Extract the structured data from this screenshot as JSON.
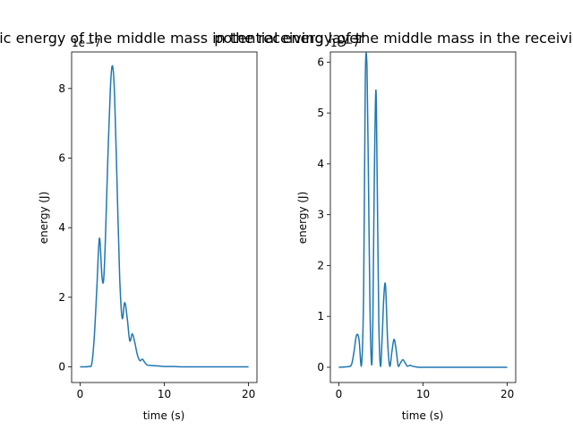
{
  "chart_data": [
    {
      "type": "line",
      "title": "kinetic energy of the middle mass in the receiving layer",
      "xlabel": "time (s)",
      "ylabel": "energy (J)",
      "offset_text": "1e−7",
      "xlim": [
        -1,
        21
      ],
      "ylim": [
        -0.45,
        9.05
      ],
      "xticks": [
        0,
        10,
        20
      ],
      "yticks": [
        0,
        2,
        4,
        6,
        8
      ],
      "line_color": "#1f77b4",
      "series": [
        {
          "x": [
            0,
            1,
            1.4,
            1.7,
            2.0,
            2.3,
            2.6,
            2.8,
            3.0,
            3.3,
            3.6,
            3.85,
            4.1,
            4.4,
            4.7,
            5.0,
            5.3,
            5.6,
            5.9,
            6.2,
            6.5,
            6.8,
            7.1,
            7.4,
            7.7,
            8.0,
            8.5,
            9.0,
            9.5,
            10,
            11,
            12,
            14,
            16,
            18,
            20
          ],
          "y": [
            0,
            0.01,
            0.1,
            0.9,
            2.3,
            3.7,
            2.6,
            2.5,
            3.6,
            6.0,
            8.0,
            8.65,
            7.8,
            5.2,
            2.6,
            1.4,
            1.85,
            1.4,
            0.75,
            0.95,
            0.7,
            0.35,
            0.18,
            0.22,
            0.12,
            0.05,
            0.04,
            0.03,
            0.02,
            0.01,
            0.01,
            0,
            0,
            0,
            0,
            0
          ]
        }
      ]
    },
    {
      "type": "line",
      "title": "potential energy of the middle mass in the receiving layer",
      "xlabel": "time (s)",
      "ylabel": "energy (J)",
      "offset_text": "1e−7",
      "xlim": [
        -1,
        21
      ],
      "ylim": [
        -0.3,
        6.2
      ],
      "xticks": [
        0,
        10,
        20
      ],
      "yticks": [
        0,
        1,
        2,
        3,
        4,
        5,
        6
      ],
      "line_color": "#1f77b4",
      "series": [
        {
          "x": [
            0,
            1.0,
            1.5,
            1.8,
            2.1,
            2.4,
            2.7,
            2.95,
            3.15,
            3.35,
            3.5,
            3.7,
            3.9,
            4.05,
            4.2,
            4.4,
            4.55,
            4.75,
            4.95,
            5.15,
            5.35,
            5.55,
            5.8,
            6.05,
            6.3,
            6.55,
            6.8,
            7.05,
            7.3,
            7.6,
            7.9,
            8.15,
            8.45,
            8.75,
            9.1,
            9.5,
            10,
            12,
            14,
            16,
            18,
            20
          ],
          "y": [
            0,
            0.01,
            0.05,
            0.3,
            0.63,
            0.55,
            0.05,
            1.5,
            5.7,
            5.9,
            4.0,
            1.2,
            0.05,
            1.0,
            3.5,
            5.45,
            3.8,
            0.9,
            0.02,
            0.6,
            1.4,
            1.6,
            0.5,
            0.02,
            0.3,
            0.55,
            0.35,
            0.03,
            0.08,
            0.15,
            0.08,
            0.02,
            0.04,
            0.02,
            0.01,
            0,
            0,
            0,
            0,
            0,
            0,
            0
          ]
        }
      ]
    }
  ]
}
